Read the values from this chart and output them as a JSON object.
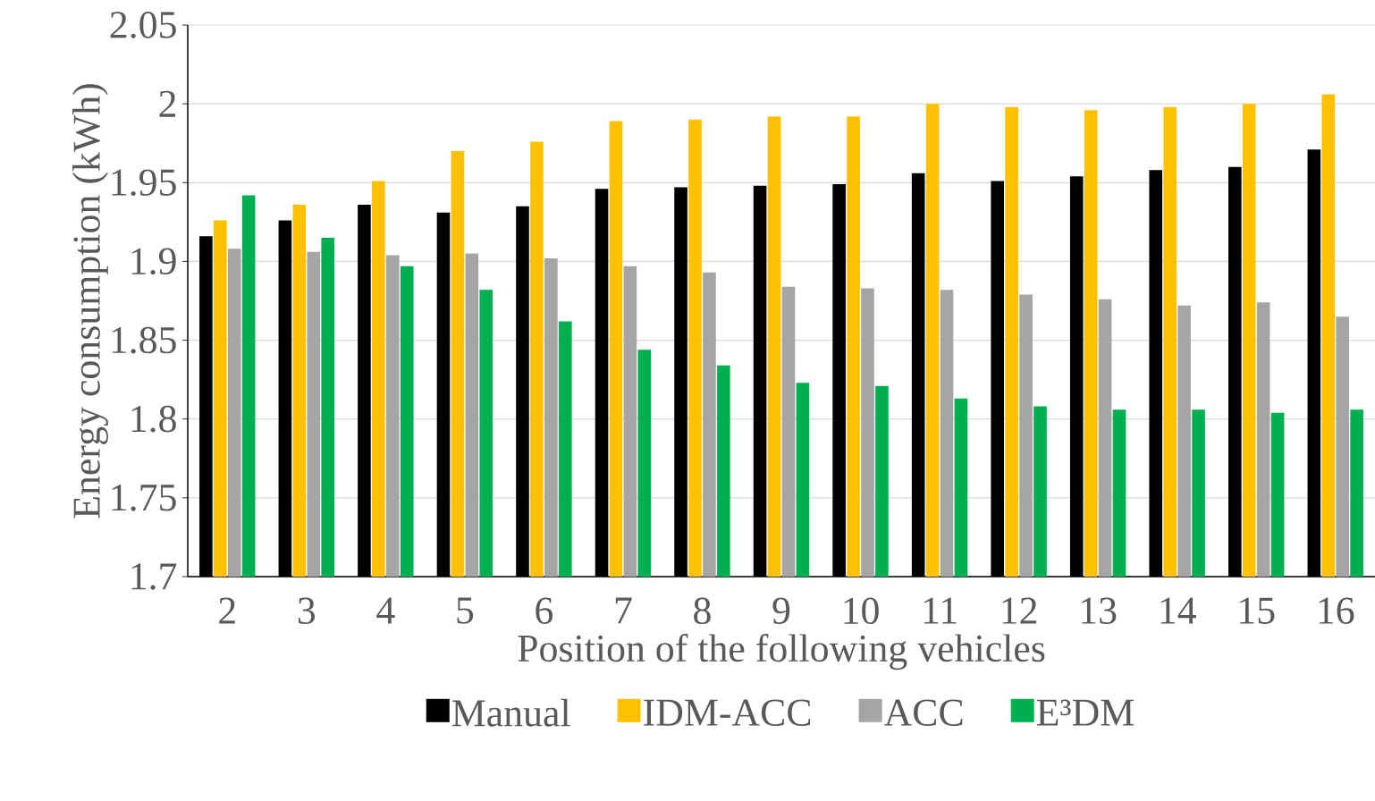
{
  "chart_data": {
    "type": "bar",
    "xlabel": "Position of the following vehicles",
    "ylabel": "Energy consumption (kWh)",
    "categories": [
      "2",
      "3",
      "4",
      "5",
      "6",
      "7",
      "8",
      "9",
      "10",
      "11",
      "12",
      "13",
      "14",
      "15",
      "16"
    ],
    "series": [
      {
        "name": "Manual",
        "color": "#000000",
        "values": [
          1.916,
          1.926,
          1.936,
          1.931,
          1.935,
          1.946,
          1.947,
          1.948,
          1.949,
          1.956,
          1.951,
          1.954,
          1.958,
          1.96,
          1.971
        ]
      },
      {
        "name": "IDM-ACC",
        "color": "#ffc000",
        "values": [
          1.926,
          1.936,
          1.951,
          1.97,
          1.976,
          1.989,
          1.99,
          1.992,
          1.992,
          2.0,
          1.998,
          1.996,
          1.998,
          2.0,
          2.006
        ]
      },
      {
        "name": "ACC",
        "color": "#a5a5a5",
        "values": [
          1.908,
          1.906,
          1.904,
          1.905,
          1.902,
          1.897,
          1.893,
          1.884,
          1.883,
          1.882,
          1.879,
          1.876,
          1.872,
          1.874,
          1.865
        ]
      },
      {
        "name": "E³DM",
        "color": "#00b050",
        "values": [
          1.942,
          1.915,
          1.897,
          1.882,
          1.862,
          1.844,
          1.834,
          1.823,
          1.821,
          1.813,
          1.808,
          1.806,
          1.806,
          1.804,
          1.806
        ]
      }
    ],
    "ylim": [
      1.7,
      2.05
    ],
    "yticks": [
      1.7,
      1.75,
      1.8,
      1.85,
      1.9,
      1.95,
      2,
      2.05
    ],
    "grid": "y",
    "legend": "bottom"
  }
}
